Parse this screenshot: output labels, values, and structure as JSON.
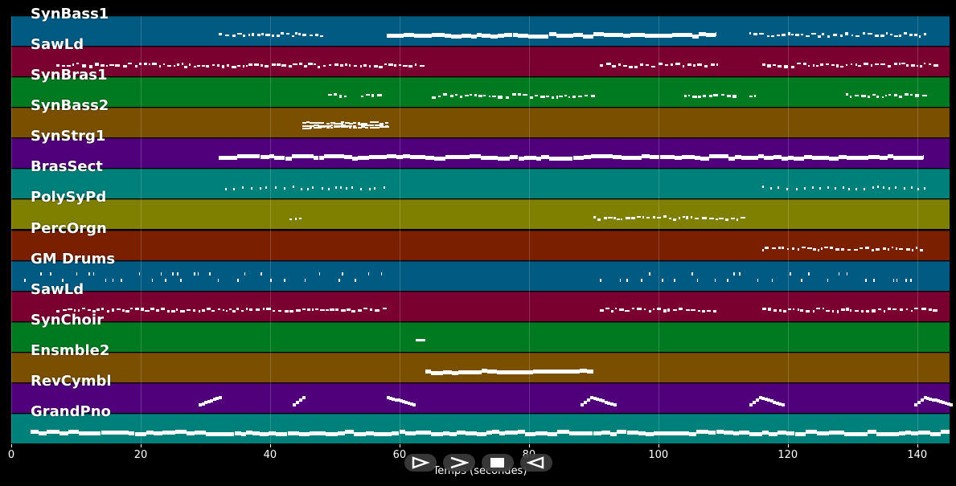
{
  "chart_data": {
    "type": "piano-roll",
    "xlabel": "Temps (secondes)",
    "xlim": [
      0,
      145
    ],
    "xticks": [
      0,
      20,
      40,
      60,
      80,
      100,
      120,
      140
    ],
    "tracks": [
      {
        "name": "SynBass1",
        "color": "#005a82",
        "regions": [
          [
            32,
            48,
            "dense"
          ],
          [
            58,
            109,
            "line"
          ],
          [
            114,
            141,
            "dense"
          ]
        ]
      },
      {
        "name": "SawLd",
        "color": "#7a0030",
        "regions": [
          [
            7,
            64,
            "dense"
          ],
          [
            91,
            109,
            "dense"
          ],
          [
            116,
            143,
            "dense"
          ]
        ]
      },
      {
        "name": "SynBras1",
        "color": "#007a20",
        "regions": [
          [
            49,
            52,
            "dense"
          ],
          [
            54,
            57,
            "dense"
          ],
          [
            65,
            90,
            "dense"
          ],
          [
            104,
            112,
            "dense"
          ],
          [
            114,
            115,
            "dense"
          ],
          [
            129,
            141,
            "dense"
          ]
        ]
      },
      {
        "name": "SynBass2",
        "color": "#7a5000",
        "regions": [
          [
            45,
            58,
            "cluster"
          ]
        ]
      },
      {
        "name": "SynStrg1",
        "color": "#50007a",
        "regions": [
          [
            32,
            141,
            "line"
          ]
        ]
      },
      {
        "name": "BrasSect",
        "color": "#00807a",
        "regions": [
          [
            33,
            58,
            "sparse"
          ],
          [
            116,
            141,
            "sparse"
          ]
        ]
      },
      {
        "name": "PolySyPd",
        "color": "#808000",
        "regions": [
          [
            43,
            45,
            "dense"
          ],
          [
            90,
            113,
            "dense"
          ]
        ]
      },
      {
        "name": "PercOrgn",
        "color": "#7a2000",
        "regions": [
          [
            116,
            141,
            "dense"
          ]
        ]
      },
      {
        "name": "GM Drums",
        "color": "#005a82",
        "regions": [
          [
            2,
            58,
            "drums"
          ],
          [
            91,
            139,
            "drums"
          ]
        ]
      },
      {
        "name": "SawLd",
        "color": "#7a0030",
        "regions": [
          [
            7,
            58,
            "dense"
          ],
          [
            91,
            109,
            "dense"
          ],
          [
            116,
            143,
            "dense"
          ]
        ]
      },
      {
        "name": "SynChoir",
        "color": "#007a20",
        "regions": [
          [
            62.5,
            64,
            "single"
          ]
        ]
      },
      {
        "name": "Ensmble2",
        "color": "#7a5000",
        "regions": [
          [
            64,
            90,
            "line"
          ]
        ]
      },
      {
        "name": "RevCymbl",
        "color": "#50007a",
        "regions": [
          [
            29,
            32,
            "ramp-up"
          ],
          [
            43.5,
            45,
            "ramp-up"
          ],
          [
            58,
            62,
            "ramp-down"
          ],
          [
            88,
            89.5,
            "ramp-up"
          ],
          [
            89.5,
            93,
            "ramp-down"
          ],
          [
            114,
            115.5,
            "ramp-up"
          ],
          [
            115.5,
            119,
            "ramp-down"
          ],
          [
            139.5,
            141,
            "ramp-up"
          ],
          [
            141,
            145,
            "ramp-down"
          ]
        ]
      },
      {
        "name": "GrandPno",
        "color": "#00807a",
        "regions": [
          [
            3,
            145,
            "line"
          ]
        ]
      }
    ]
  },
  "controls": [
    {
      "label": "play",
      "icon": "play-icon"
    },
    {
      "label": "forward",
      "icon": "forward-icon"
    },
    {
      "label": "stop",
      "icon": "stop-icon"
    },
    {
      "label": "rewind",
      "icon": "rewind-icon"
    }
  ]
}
